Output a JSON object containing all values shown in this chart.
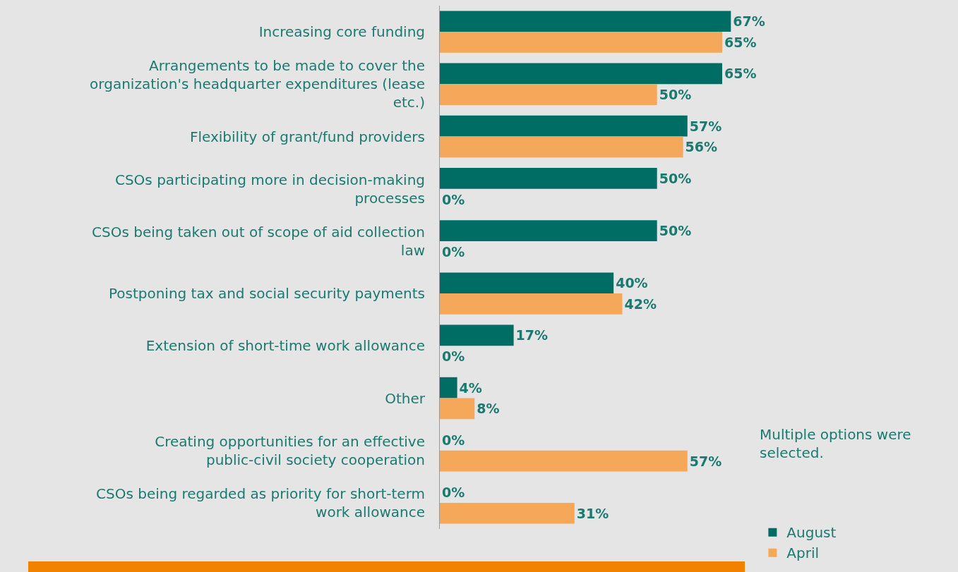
{
  "chart_data": {
    "type": "bar",
    "orientation": "horizontal",
    "categories": [
      "Increasing core funding",
      "Arrangements to be made to cover the organization's headquarter expenditures (lease etc.)",
      "Flexibility of grant/fund providers",
      "CSOs participating more in decision-making processes",
      "CSOs being taken out of scope of aid collection law",
      "Postponing tax and social security payments",
      "Extension of short-time work allowance",
      "Other",
      "Creating opportunities for an effective public-civil society cooperation",
      "CSOs being regarded as priority for short-term work allowance"
    ],
    "series": [
      {
        "name": "August",
        "color": "#006d64",
        "values": [
          67,
          65,
          57,
          50,
          50,
          40,
          17,
          4,
          0,
          0
        ],
        "value_labels": [
          "67%",
          "65%",
          "57%",
          "50%",
          "50%",
          "40%",
          "17%",
          "4%",
          "0%",
          "0%"
        ]
      },
      {
        "name": "April",
        "color": "#f5a85a",
        "values": [
          65,
          50,
          56,
          0,
          0,
          42,
          0,
          8,
          57,
          31
        ],
        "value_labels": [
          "65%",
          "50%",
          "56%",
          "0%",
          "0%",
          "42%",
          "0%",
          "8%",
          "57%",
          "31%"
        ]
      }
    ],
    "legend": "bottom right",
    "annotations": [
      "Multiple options were selected."
    ]
  }
}
